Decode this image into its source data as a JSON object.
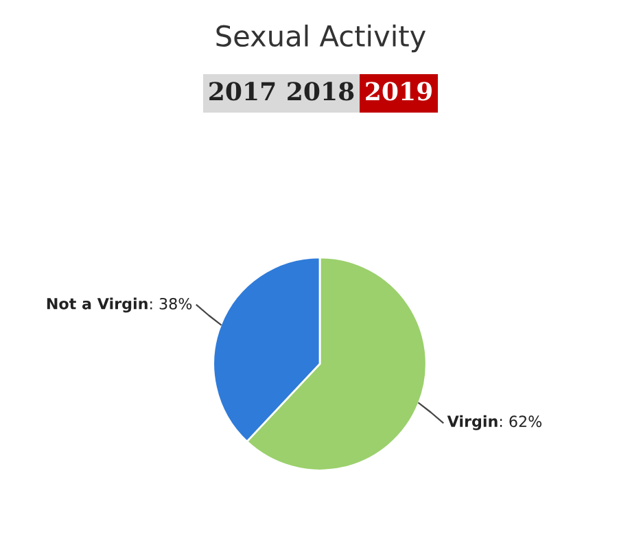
{
  "chart_data": {
    "type": "pie",
    "title": "Sexual Activity",
    "annotations": [
      "2017",
      "2018",
      "2019"
    ],
    "categories": [
      "Virgin",
      "Not a Virgin"
    ],
    "values": [
      62,
      38
    ],
    "value_labels": [
      ": 62%",
      ": 38%"
    ],
    "colors": [
      "#9bd06c",
      "#2f7bd9"
    ],
    "legend": false
  }
}
